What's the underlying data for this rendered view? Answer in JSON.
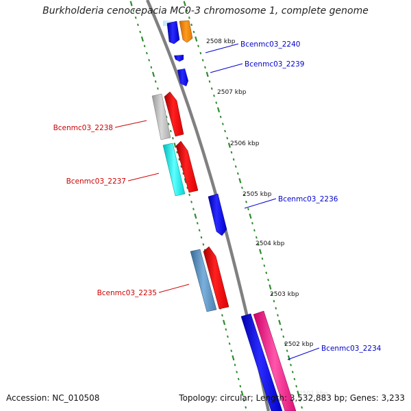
{
  "title": "Burkholderia cenocepacia MC0-3 chromosome 1, complete genome",
  "colors": {
    "backbone": "#808080",
    "tick": "#2e8b2e",
    "forward_label": "#0000cc",
    "reverse_label": "#cc0000"
  },
  "ticks": [
    {
      "label": "2508 kbp"
    },
    {
      "label": "2507 kbp"
    },
    {
      "label": "2506 kbp"
    },
    {
      "label": "2505 kbp"
    },
    {
      "label": "2504 kbp"
    },
    {
      "label": "2503 kbp"
    },
    {
      "label": "2502 kbp"
    },
    {
      "label": "2501 kbp"
    }
  ],
  "genes": [
    {
      "label": "Bcenmc03_2240",
      "strand": "forward"
    },
    {
      "label": "Bcenmc03_2239",
      "strand": "forward"
    },
    {
      "label": "Bcenmc03_2238",
      "strand": "reverse"
    },
    {
      "label": "Bcenmc03_2237",
      "strand": "reverse"
    },
    {
      "label": "Bcenmc03_2236",
      "strand": "forward"
    },
    {
      "label": "Bcenmc03_2235",
      "strand": "reverse"
    },
    {
      "label": "Bcenmc03_2234",
      "strand": "forward"
    }
  ],
  "footer": {
    "accession_label": "Accession:",
    "accession": "NC_010508",
    "topology_label": "Topology:",
    "topology": "circular",
    "length_label": "Length:",
    "length": "3,532,883 bp",
    "genes_label": "Genes:",
    "genes": "3,233"
  }
}
